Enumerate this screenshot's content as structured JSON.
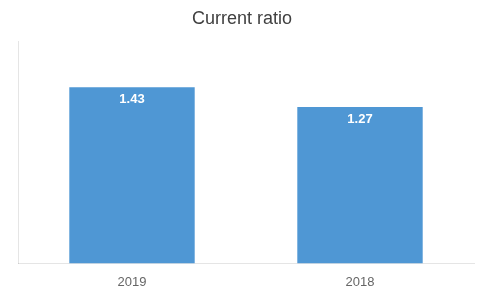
{
  "chart_data": {
    "type": "bar",
    "title": "Current ratio",
    "categories": [
      "2019",
      "2018"
    ],
    "values": [
      1.43,
      1.27
    ],
    "color": "#4F97D4",
    "ylim": [
      0,
      1.8
    ],
    "grid": false,
    "data_labels": true,
    "tick_labels": "x"
  }
}
